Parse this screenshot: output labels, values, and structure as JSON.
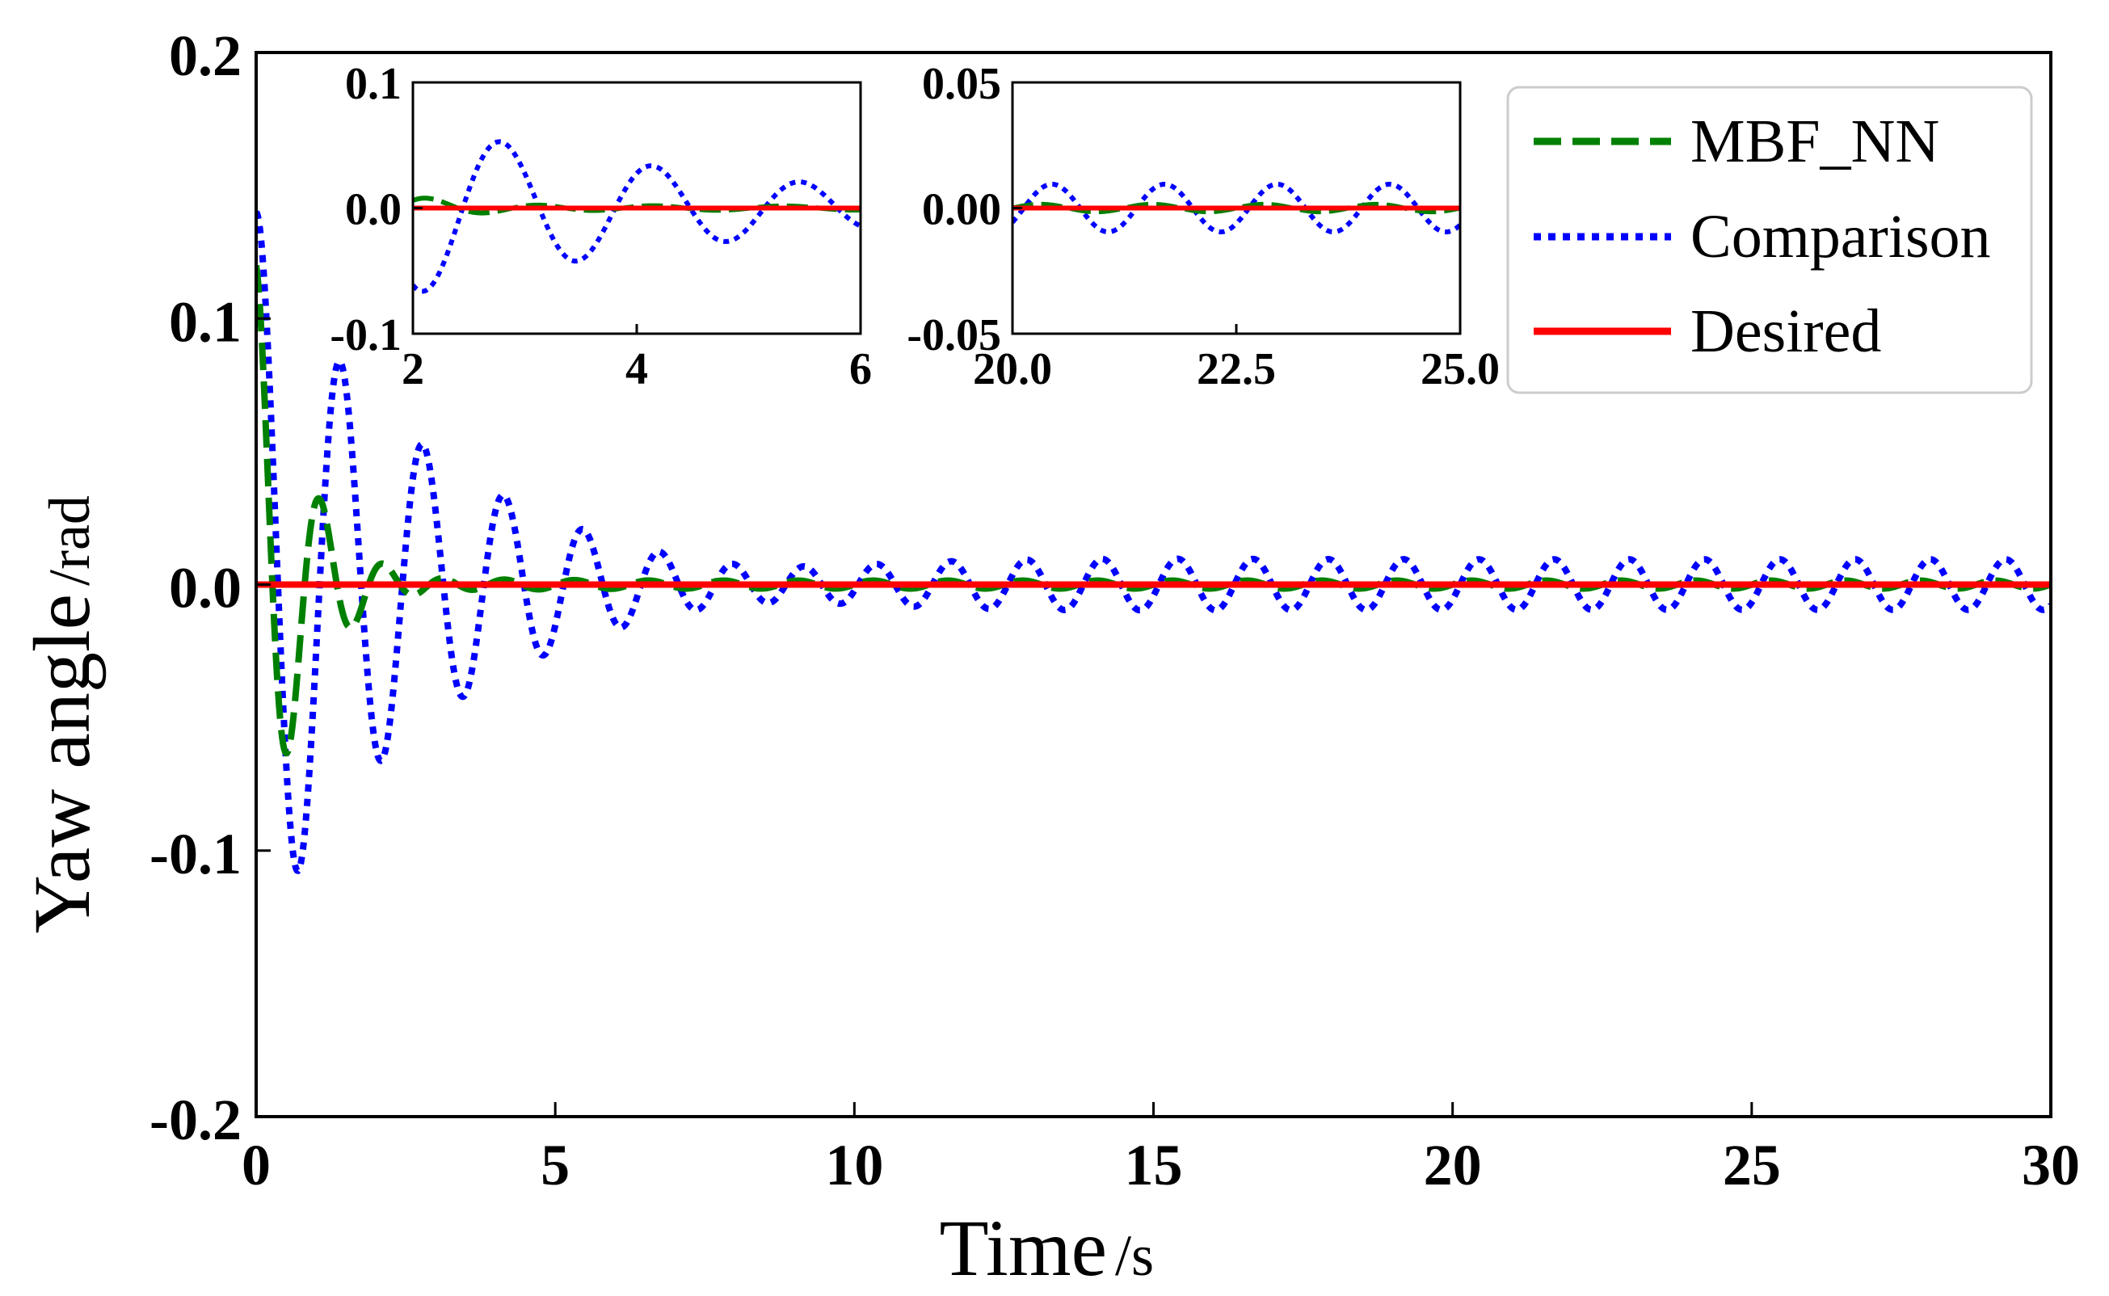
{
  "chart_data": [
    {
      "id": "main",
      "type": "line",
      "title": "",
      "xlabel": "Time",
      "xlabel_unit": "/s",
      "ylabel": "Yaw angle",
      "ylabel_unit": "/rad",
      "xlim": [
        0,
        30
      ],
      "ylim": [
        -0.2,
        0.2
      ],
      "xticks": [
        0,
        5,
        10,
        15,
        20,
        25,
        30
      ],
      "xtick_labels": [
        "0",
        "5",
        "10",
        "15",
        "20",
        "25",
        "30"
      ],
      "yticks": [
        -0.2,
        -0.1,
        0.0,
        0.1,
        0.2
      ],
      "ytick_labels": [
        "-0.2",
        "-0.1",
        "0.0",
        "0.1",
        "0.2"
      ],
      "grid": false,
      "legend_position": "top-right",
      "series": [
        {
          "name": "MBF_NN",
          "color": "#008000",
          "dash": "dashed",
          "model": {
            "amplitude": 0.12,
            "decay": 1.2,
            "frequency": 0.93,
            "phase": 1.5708,
            "floor_amplitude": 0.0015,
            "floor_frequency": 0.8
          }
        },
        {
          "name": "Comparison",
          "color": "#0000ff",
          "dash": "dotted",
          "model": {
            "amplitude": 0.14,
            "decay": 0.42,
            "frequency": 0.72,
            "phase": 1.5708,
            "floor_amplitude": 0.0095,
            "floor_frequency": 0.795
          }
        },
        {
          "name": "Desired",
          "color": "#ff0000",
          "dash": "solid",
          "x": [
            0,
            30
          ],
          "y": [
            0,
            0
          ]
        }
      ]
    },
    {
      "id": "inset1",
      "type": "line",
      "xlim": [
        2,
        6
      ],
      "ylim": [
        -0.1,
        0.1
      ],
      "xticks": [
        2,
        4,
        6
      ],
      "xtick_labels": [
        "2",
        "4",
        "6"
      ],
      "yticks": [
        -0.1,
        0.0,
        0.1
      ],
      "ytick_labels": [
        "-0.1",
        "0.0",
        "0.1"
      ]
    },
    {
      "id": "inset2",
      "type": "line",
      "xlim": [
        20,
        25
      ],
      "ylim": [
        -0.05,
        0.05
      ],
      "xticks": [
        20,
        22.5,
        25
      ],
      "xtick_labels": [
        "20.0",
        "22.5",
        "25.0"
      ],
      "yticks": [
        -0.05,
        0.0,
        0.05
      ],
      "ytick_labels": [
        "-0.05",
        "0.00",
        "0.05"
      ]
    }
  ],
  "legend": [
    {
      "label": "MBF_NN",
      "color": "#008000",
      "dash": "dashed"
    },
    {
      "label": "Comparison",
      "color": "#0000ff",
      "dash": "dotted"
    },
    {
      "label": "Desired",
      "color": "#ff0000",
      "dash": "solid"
    }
  ]
}
